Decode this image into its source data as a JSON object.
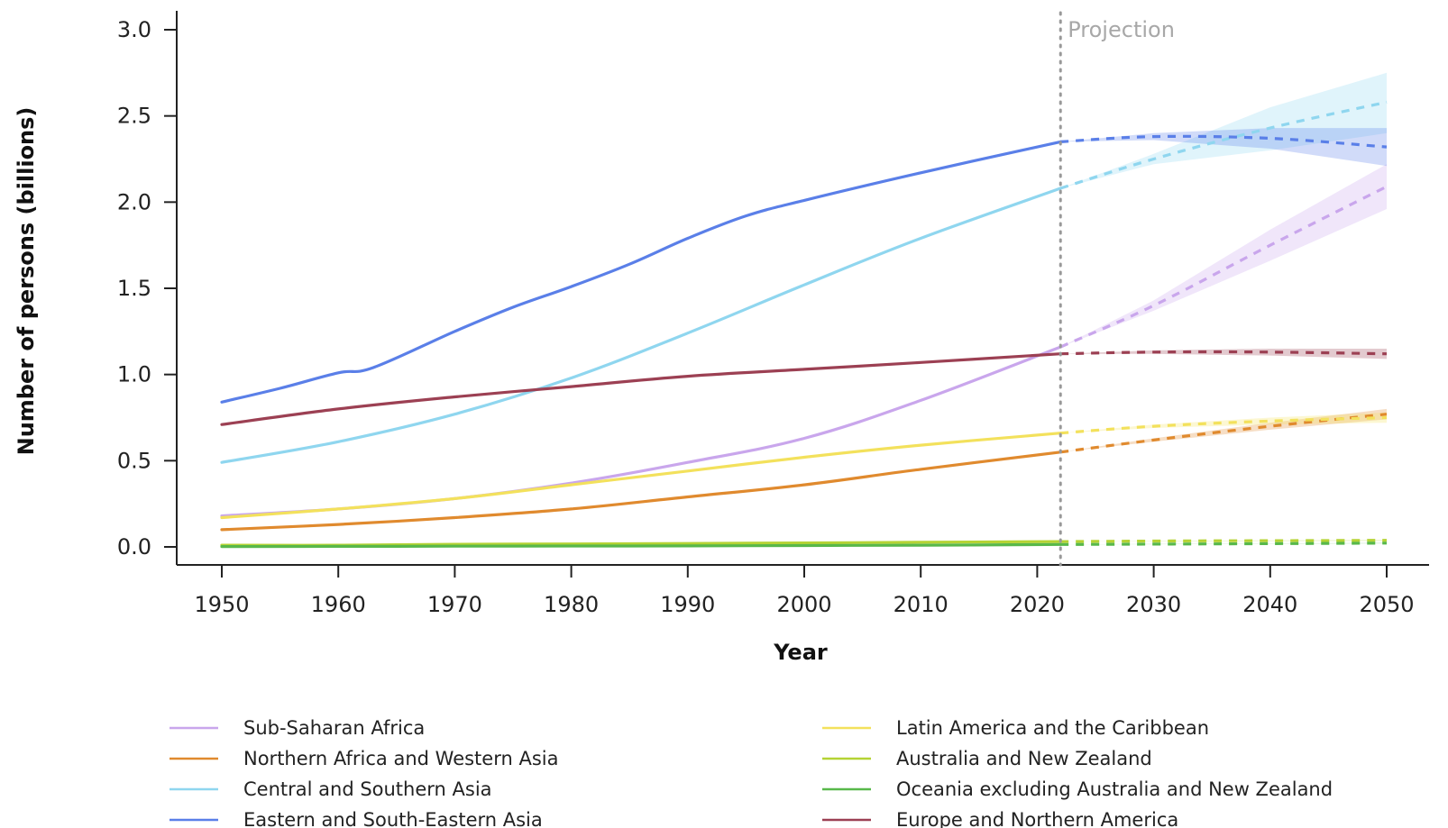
{
  "chart_data": {
    "type": "line",
    "title": "",
    "xlabel": "Year",
    "ylabel": "Number of persons (billions)",
    "xlim": [
      1946,
      2053
    ],
    "ylim": [
      -0.12,
      3.12
    ],
    "x_ticks": [
      1950,
      1960,
      1970,
      1980,
      1990,
      2000,
      2010,
      2020,
      2030,
      2040,
      2050
    ],
    "x_tick_labels": [
      "1950",
      "1960",
      "1970",
      "1980",
      "1990",
      "2000",
      "2010",
      "2020",
      "2030",
      "2040",
      "2050"
    ],
    "y_ticks": [
      0.0,
      0.5,
      1.0,
      1.5,
      2.0,
      2.5,
      3.0
    ],
    "y_tick_labels": [
      "0.0",
      "0.5",
      "1.0",
      "1.5",
      "2.0",
      "2.5",
      "3.0"
    ],
    "grid": false,
    "legend_position": "bottom",
    "projection_start": 2022,
    "projection_label": "Projection",
    "series": [
      {
        "name": "Sub-Saharan Africa",
        "color": "#c9a6ec",
        "x": [
          1950,
          1960,
          1970,
          1980,
          1990,
          2000,
          2010,
          2022
        ],
        "values": [
          0.18,
          0.22,
          0.28,
          0.37,
          0.49,
          0.63,
          0.85,
          1.16
        ],
        "projection": {
          "x": [
            2022,
            2030,
            2040,
            2050
          ],
          "values": [
            1.16,
            1.4,
            1.75,
            2.09
          ],
          "lower": [
            1.16,
            1.37,
            1.66,
            1.96
          ],
          "upper": [
            1.16,
            1.43,
            1.84,
            2.22
          ]
        }
      },
      {
        "name": "Northern Africa and Western Asia",
        "color": "#e08a2e",
        "x": [
          1950,
          1960,
          1970,
          1980,
          1990,
          2000,
          2010,
          2022
        ],
        "values": [
          0.1,
          0.13,
          0.17,
          0.22,
          0.29,
          0.36,
          0.45,
          0.55
        ],
        "projection": {
          "x": [
            2022,
            2030,
            2040,
            2050
          ],
          "values": [
            0.55,
            0.62,
            0.7,
            0.77
          ],
          "lower": [
            0.55,
            0.61,
            0.68,
            0.74
          ],
          "upper": [
            0.55,
            0.63,
            0.72,
            0.8
          ]
        }
      },
      {
        "name": "Central and Southern Asia",
        "color": "#8fd6ef",
        "x": [
          1950,
          1960,
          1970,
          1980,
          1990,
          2000,
          2010,
          2022
        ],
        "values": [
          0.49,
          0.61,
          0.77,
          0.98,
          1.24,
          1.52,
          1.79,
          2.08
        ],
        "projection": {
          "x": [
            2022,
            2030,
            2040,
            2050
          ],
          "values": [
            2.08,
            2.25,
            2.43,
            2.58
          ],
          "lower": [
            2.08,
            2.22,
            2.3,
            2.4
          ],
          "upper": [
            2.08,
            2.28,
            2.55,
            2.75
          ]
        }
      },
      {
        "name": "Eastern and South-Eastern Asia",
        "color": "#5a7fe8",
        "x": [
          1950,
          1955,
          1960,
          1963,
          1970,
          1975,
          1980,
          1985,
          1990,
          1995,
          2000,
          2010,
          2022
        ],
        "values": [
          0.84,
          0.92,
          1.01,
          1.04,
          1.25,
          1.39,
          1.51,
          1.64,
          1.79,
          1.92,
          2.01,
          2.17,
          2.35
        ],
        "projection": {
          "x": [
            2022,
            2030,
            2040,
            2050
          ],
          "values": [
            2.35,
            2.38,
            2.37,
            2.32
          ],
          "lower": [
            2.35,
            2.36,
            2.31,
            2.21
          ],
          "upper": [
            2.35,
            2.4,
            2.43,
            2.43
          ]
        }
      },
      {
        "name": "Latin America and the Caribbean",
        "color": "#f3e15c",
        "x": [
          1950,
          1960,
          1970,
          1980,
          1990,
          2000,
          2010,
          2022
        ],
        "values": [
          0.17,
          0.22,
          0.28,
          0.36,
          0.44,
          0.52,
          0.59,
          0.66
        ],
        "projection": {
          "x": [
            2022,
            2030,
            2040,
            2050
          ],
          "values": [
            0.66,
            0.7,
            0.73,
            0.75
          ],
          "lower": [
            0.66,
            0.69,
            0.71,
            0.72
          ],
          "upper": [
            0.66,
            0.71,
            0.75,
            0.78
          ]
        }
      },
      {
        "name": "Australia and New Zealand",
        "color": "#b5d334",
        "x": [
          1950,
          1960,
          1970,
          1980,
          1990,
          2000,
          2010,
          2022
        ],
        "values": [
          0.01,
          0.01,
          0.015,
          0.017,
          0.02,
          0.023,
          0.027,
          0.031
        ],
        "projection": {
          "x": [
            2022,
            2030,
            2040,
            2050
          ],
          "values": [
            0.031,
            0.034,
            0.036,
            0.038
          ],
          "lower": [
            0.031,
            0.033,
            0.034,
            0.035
          ],
          "upper": [
            0.031,
            0.035,
            0.038,
            0.041
          ]
        }
      },
      {
        "name": "Oceania excluding Australia and New Zealand",
        "color": "#58b84a",
        "x": [
          1950,
          1960,
          1970,
          1980,
          1990,
          2000,
          2010,
          2022
        ],
        "values": [
          0.002,
          0.003,
          0.004,
          0.005,
          0.006,
          0.008,
          0.01,
          0.014
        ],
        "projection": {
          "x": [
            2022,
            2030,
            2040,
            2050
          ],
          "values": [
            0.014,
            0.016,
            0.019,
            0.022
          ],
          "lower": [
            0.014,
            0.015,
            0.018,
            0.02
          ],
          "upper": [
            0.014,
            0.017,
            0.02,
            0.024
          ]
        }
      },
      {
        "name": "Europe and Northern America",
        "color": "#9c4053",
        "x": [
          1950,
          1960,
          1970,
          1980,
          1990,
          2000,
          2010,
          2022
        ],
        "values": [
          0.71,
          0.8,
          0.87,
          0.93,
          0.99,
          1.03,
          1.07,
          1.12
        ],
        "projection": {
          "x": [
            2022,
            2030,
            2040,
            2050
          ],
          "values": [
            1.12,
            1.13,
            1.13,
            1.12
          ],
          "lower": [
            1.12,
            1.12,
            1.11,
            1.09
          ],
          "upper": [
            1.12,
            1.14,
            1.15,
            1.15
          ]
        }
      }
    ]
  }
}
